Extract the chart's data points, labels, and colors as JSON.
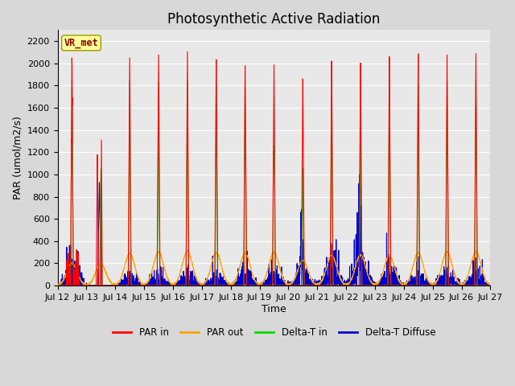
{
  "title": "Photosynthetic Active Radiation",
  "ylabel": "PAR (umol/m2/s)",
  "xlabel": "Time",
  "station_label": "VR_met",
  "x_tick_labels": [
    "Jul 12",
    "Jul 13",
    "Jul 14",
    "Jul 15",
    "Jul 16",
    "Jul 17",
    "Jul 18",
    "Jul 19",
    "Jul 20",
    "Jul 21",
    "Jul 22",
    "Jul 23",
    "Jul 24",
    "Jul 25",
    "Jul 26",
    "Jul 27"
  ],
  "ylim": [
    0,
    2300
  ],
  "colors": {
    "PAR_in": "#FF0000",
    "PAR_out": "#FFA500",
    "Delta_T_in": "#00DD00",
    "Delta_T_Diffuse": "#0000CC"
  },
  "legend_labels": [
    "PAR in",
    "PAR out",
    "Delta-T in",
    "Delta-T Diffuse"
  ],
  "background_color": "#E8E8E8",
  "fig_background": "#D8D8D8",
  "grid_color": "#FFFFFF",
  "title_fontsize": 12,
  "label_fontsize": 9,
  "tick_fontsize": 8
}
